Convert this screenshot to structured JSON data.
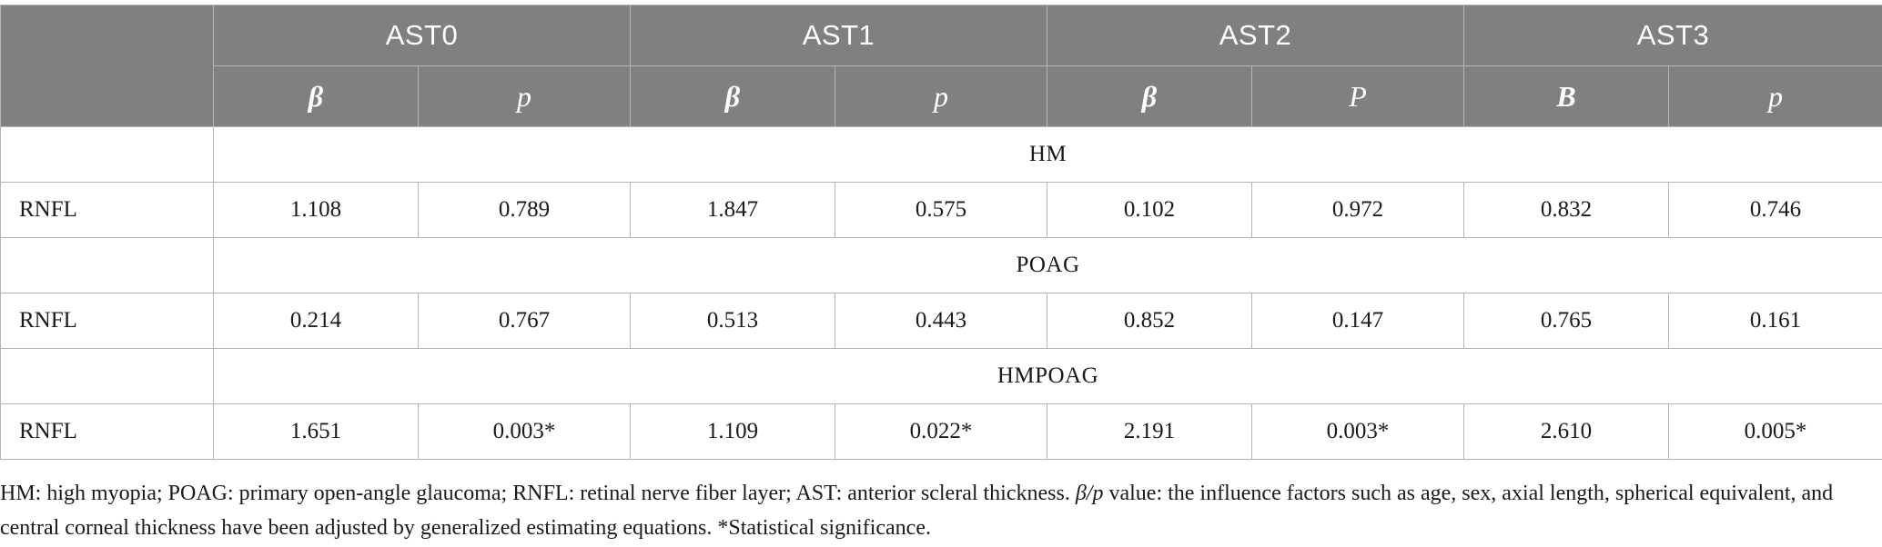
{
  "table": {
    "column_groups": [
      "AST0",
      "AST1",
      "AST2",
      "AST3"
    ],
    "sub_headers": [
      "β",
      "p",
      "β",
      "p",
      "β",
      "P",
      "B",
      "p"
    ],
    "sections": [
      {
        "group": "HM",
        "row_label": "RNFL",
        "values": [
          "1.108",
          "0.789",
          "1.847",
          "0.575",
          "0.102",
          "0.972",
          "0.832",
          "0.746"
        ]
      },
      {
        "group": "POAG",
        "row_label": "RNFL",
        "values": [
          "0.214",
          "0.767",
          "0.513",
          "0.443",
          "0.852",
          "0.147",
          "0.765",
          "0.161"
        ]
      },
      {
        "group": "HMPOAG",
        "row_label": "RNFL",
        "values": [
          "1.651",
          "0.003*",
          "1.109",
          "0.022*",
          "2.191",
          "0.003*",
          "2.610",
          "0.005*"
        ]
      }
    ]
  },
  "footnote": {
    "text_before": "HM: high myopia; POAG: primary open-angle glaucoma; RNFL: retinal nerve fiber layer; AST: anterior scleral thickness. ",
    "italic": "β/p",
    "text_after": " value: the influence factors such as age, sex, axial length, spherical equivalent, and central corneal thickness have been adjusted by generalized estimating equations. *Statistical significance."
  }
}
